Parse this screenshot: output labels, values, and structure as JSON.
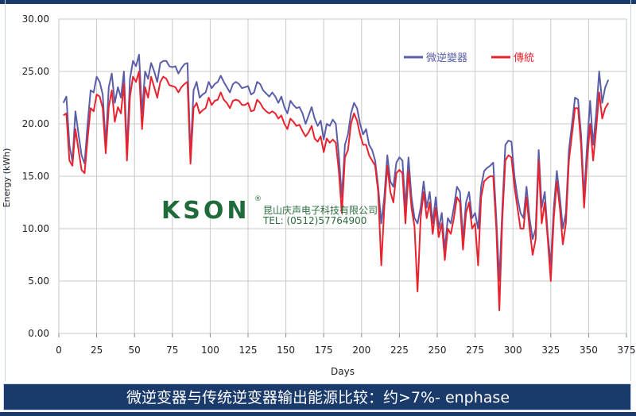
{
  "chart_data": {
    "type": "line",
    "xlabel": "Days",
    "ylabel": "Energy (kWh)",
    "xlim": [
      0,
      375
    ],
    "ylim": [
      0,
      30
    ],
    "x_ticks": [
      "0",
      "25",
      "50",
      "75",
      "100",
      "125",
      "150",
      "175",
      "200",
      "225",
      "250",
      "275",
      "300",
      "325",
      "350",
      "375"
    ],
    "y_ticks": [
      "0.00",
      "5.00",
      "10.00",
      "15.00",
      "20.00",
      "25.00",
      "30.00"
    ],
    "grid": true,
    "legend_position": "top-right",
    "series": [
      {
        "name": "微逆變器",
        "color": "#5a5ea8",
        "x": [
          3,
          5,
          7,
          9,
          11,
          13,
          15,
          17,
          19,
          21,
          23,
          25,
          27,
          29,
          31,
          33,
          35,
          37,
          39,
          41,
          43,
          45,
          47,
          49,
          51,
          53,
          55,
          57,
          59,
          61,
          63,
          65,
          67,
          69,
          71,
          73,
          75,
          77,
          79,
          81,
          83,
          85,
          87,
          89,
          91,
          93,
          95,
          97,
          99,
          101,
          103,
          105,
          107,
          109,
          111,
          113,
          115,
          117,
          119,
          121,
          123,
          125,
          127,
          129,
          131,
          133,
          135,
          137,
          139,
          141,
          143,
          145,
          147,
          149,
          151,
          153,
          155,
          157,
          159,
          161,
          163,
          165,
          167,
          169,
          171,
          173,
          175,
          177,
          179,
          181,
          183,
          185,
          187,
          189,
          191,
          193,
          195,
          197,
          199,
          201,
          203,
          205,
          207,
          209,
          211,
          213,
          215,
          217,
          219,
          221,
          223,
          225,
          227,
          229,
          231,
          233,
          235,
          237,
          239,
          241,
          243,
          245,
          247,
          249,
          251,
          253,
          255,
          257,
          259,
          261,
          263,
          265,
          267,
          269,
          271,
          273,
          275,
          277,
          279,
          281,
          283,
          285,
          287,
          289,
          291,
          293,
          295,
          297,
          299,
          301,
          303,
          305,
          307,
          309,
          311,
          313,
          315,
          317,
          319,
          321,
          323,
          325,
          327,
          329,
          331,
          333,
          335,
          337,
          339,
          341,
          343,
          345,
          347,
          349,
          351,
          353,
          355,
          357,
          359,
          361,
          363
        ],
        "values": [
          22.0,
          22.6,
          18.0,
          16.4,
          21.2,
          19.0,
          17.0,
          16.2,
          20.0,
          23.2,
          23.0,
          24.5,
          24.0,
          22.8,
          18.0,
          23.5,
          24.8,
          22.0,
          23.5,
          22.5,
          25.0,
          17.4,
          24.3,
          26.0,
          25.5,
          26.6,
          21.0,
          25.0,
          24.3,
          25.8,
          25.0,
          24.0,
          25.8,
          26.0,
          26.0,
          25.5,
          25.4,
          25.5,
          24.8,
          25.3,
          25.7,
          25.8,
          17.0,
          23.2,
          24.0,
          22.5,
          22.8,
          23.0,
          24.0,
          23.4,
          23.8,
          24.0,
          24.6,
          24.0,
          23.5,
          23.0,
          23.8,
          24.0,
          23.8,
          23.4,
          23.5,
          23.6,
          22.8,
          23.0,
          24.0,
          23.8,
          23.2,
          22.9,
          22.6,
          23.0,
          22.6,
          22.0,
          22.6,
          21.6,
          21.0,
          22.2,
          21.8,
          21.5,
          21.6,
          21.0,
          20.0,
          20.8,
          21.6,
          20.5,
          19.8,
          20.3,
          18.5,
          20.0,
          19.8,
          20.4,
          20.0,
          17.0,
          13.0,
          18.0,
          19.0,
          21.0,
          22.0,
          21.5,
          20.0,
          19.0,
          19.5,
          18.0,
          17.5,
          16.5,
          14.0,
          10.5,
          13.0,
          17.0,
          14.5,
          14.0,
          16.3,
          16.8,
          16.5,
          12.0,
          16.8,
          13.0,
          11.0,
          10.5,
          12.0,
          14.5,
          12.0,
          13.5,
          10.5,
          13.0,
          10.0,
          11.5,
          8.0,
          11.0,
          10.5,
          12.0,
          14.0,
          13.5,
          9.0,
          12.5,
          13.5,
          11.0,
          11.5,
          10.0,
          14.0,
          15.5,
          15.8,
          16.0,
          16.3,
          11.0,
          5.0,
          12.0,
          18.0,
          18.4,
          18.3,
          15.0,
          13.0,
          11.5,
          11.0,
          14.0,
          11.0,
          9.0,
          10.0,
          17.5,
          12.0,
          13.5,
          9.5,
          6.5,
          12.0,
          15.5,
          13.0,
          10.0,
          11.5,
          17.5,
          20.0,
          22.5,
          22.3,
          19.0,
          13.0,
          18.0,
          22.2,
          18.0,
          21.0,
          25.0,
          22.0,
          23.5,
          24.2
        ]
      },
      {
        "name": "傳統",
        "color": "#e8232e",
        "x": [
          3,
          5,
          7,
          9,
          11,
          13,
          15,
          17,
          19,
          21,
          23,
          25,
          27,
          29,
          31,
          33,
          35,
          37,
          39,
          41,
          43,
          45,
          47,
          49,
          51,
          53,
          55,
          57,
          59,
          61,
          63,
          65,
          67,
          69,
          71,
          73,
          75,
          77,
          79,
          81,
          83,
          85,
          87,
          89,
          91,
          93,
          95,
          97,
          99,
          101,
          103,
          105,
          107,
          109,
          111,
          113,
          115,
          117,
          119,
          121,
          123,
          125,
          127,
          129,
          131,
          133,
          135,
          137,
          139,
          141,
          143,
          145,
          147,
          149,
          151,
          153,
          155,
          157,
          159,
          161,
          163,
          165,
          167,
          169,
          171,
          173,
          175,
          177,
          179,
          181,
          183,
          185,
          187,
          189,
          191,
          193,
          195,
          197,
          199,
          201,
          203,
          205,
          207,
          209,
          211,
          213,
          215,
          217,
          219,
          221,
          223,
          225,
          227,
          229,
          231,
          233,
          235,
          237,
          239,
          241,
          243,
          245,
          247,
          249,
          251,
          253,
          255,
          257,
          259,
          261,
          263,
          265,
          267,
          269,
          271,
          273,
          275,
          277,
          279,
          281,
          283,
          285,
          287,
          289,
          291,
          293,
          295,
          297,
          299,
          301,
          303,
          305,
          307,
          309,
          311,
          313,
          315,
          317,
          319,
          321,
          323,
          325,
          327,
          329,
          331,
          333,
          335,
          337,
          339,
          341,
          343,
          345,
          347,
          349,
          351,
          353,
          355,
          357,
          359,
          361,
          363
        ],
        "values": [
          20.8,
          21.0,
          16.5,
          16.0,
          19.5,
          17.5,
          15.6,
          15.3,
          18.6,
          21.5,
          21.2,
          22.8,
          22.6,
          21.5,
          17.2,
          21.6,
          23.2,
          20.2,
          21.6,
          21.0,
          23.8,
          16.5,
          22.6,
          24.5,
          24.0,
          25.0,
          19.5,
          23.5,
          22.5,
          24.5,
          23.5,
          22.5,
          24.0,
          24.5,
          24.3,
          23.7,
          23.6,
          23.5,
          23.0,
          23.5,
          23.8,
          24.0,
          16.2,
          21.5,
          22.0,
          21.0,
          21.3,
          21.5,
          22.5,
          21.8,
          22.2,
          22.3,
          23.0,
          22.3,
          22.0,
          21.5,
          22.2,
          22.3,
          22.2,
          21.8,
          21.8,
          22.0,
          21.2,
          21.3,
          22.3,
          22.0,
          21.5,
          21.2,
          21.0,
          21.2,
          21.0,
          20.5,
          20.8,
          20.0,
          19.5,
          20.5,
          20.2,
          19.8,
          19.9,
          19.3,
          18.8,
          19.2,
          19.8,
          18.6,
          18.3,
          18.8,
          17.3,
          18.6,
          18.2,
          18.5,
          18.2,
          15.5,
          11.5,
          16.8,
          17.5,
          20.0,
          21.0,
          20.3,
          19.0,
          18.0,
          18.0,
          17.0,
          16.5,
          16.0,
          13.5,
          6.5,
          12.0,
          16.0,
          13.5,
          12.5,
          15.3,
          15.6,
          15.3,
          10.5,
          15.5,
          12.0,
          10.2,
          4.0,
          11.0,
          13.5,
          11.0,
          12.5,
          9.5,
          12.0,
          9.2,
          10.5,
          7.0,
          10.0,
          9.5,
          11.0,
          13.0,
          12.5,
          8.0,
          11.5,
          12.5,
          10.0,
          10.5,
          6.5,
          13.0,
          14.5,
          14.8,
          15.0,
          15.0,
          10.0,
          2.2,
          11.0,
          16.5,
          17.0,
          16.8,
          14.0,
          12.0,
          10.0,
          10.0,
          13.0,
          10.0,
          7.5,
          9.0,
          16.5,
          10.5,
          12.5,
          9.0,
          5.0,
          11.0,
          14.5,
          12.0,
          8.5,
          10.5,
          16.5,
          19.0,
          21.5,
          21.5,
          18.0,
          12.0,
          16.5,
          20.0,
          16.5,
          19.5,
          23.0,
          20.5,
          21.5,
          22.0
        ]
      }
    ]
  },
  "watermark": {
    "logo": "KSON",
    "registered": "®",
    "company": "昆山庆声电子科技有限公司",
    "tel": "TEL: (0512)57764900"
  },
  "caption": {
    "text": "微逆变器与传统逆变器输出能源比较：约>7%- enphase"
  },
  "colors": {
    "frame": "#1a3a6b",
    "grid": "#c8c8c8",
    "micro_inverter": "#5a5ea8",
    "traditional": "#e8232e",
    "watermark": "#1f6b3a"
  }
}
